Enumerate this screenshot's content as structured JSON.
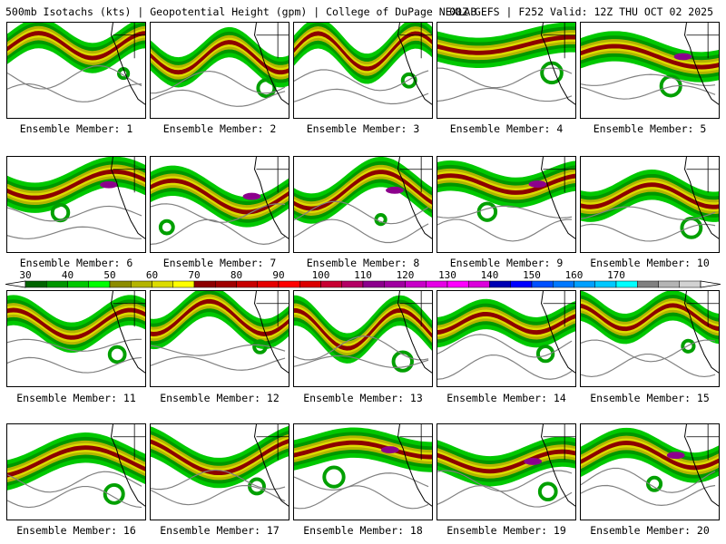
{
  "header": {
    "left": "500mb Isotachs (kts) | Geopotential Height (gpm) | College of DuPage NEXLAB",
    "right": "00Z GEFS | F252 Valid: 12Z THU OCT 02 2025"
  },
  "panels": [
    {
      "member": 1,
      "caption": "Ensemble Member: 1"
    },
    {
      "member": 2,
      "caption": "Ensemble Member: 2"
    },
    {
      "member": 3,
      "caption": "Ensemble Member: 3"
    },
    {
      "member": 4,
      "caption": "Ensemble Member: 4"
    },
    {
      "member": 5,
      "caption": "Ensemble Member: 5"
    },
    {
      "member": 6,
      "caption": "Ensemble Member: 6"
    },
    {
      "member": 7,
      "caption": "Ensemble Member: 7"
    },
    {
      "member": 8,
      "caption": "Ensemble Member: 8"
    },
    {
      "member": 9,
      "caption": "Ensemble Member: 9"
    },
    {
      "member": 10,
      "caption": "Ensemble Member: 10"
    },
    {
      "member": 11,
      "caption": "Ensemble Member: 11"
    },
    {
      "member": 12,
      "caption": "Ensemble Member: 12"
    },
    {
      "member": 13,
      "caption": "Ensemble Member: 13"
    },
    {
      "member": 14,
      "caption": "Ensemble Member: 14"
    },
    {
      "member": 15,
      "caption": "Ensemble Member: 15"
    },
    {
      "member": 16,
      "caption": "Ensemble Member: 16"
    },
    {
      "member": 17,
      "caption": "Ensemble Member: 17"
    },
    {
      "member": 18,
      "caption": "Ensemble Member: 18"
    },
    {
      "member": 19,
      "caption": "Ensemble Member: 19"
    },
    {
      "member": 20,
      "caption": "Ensemble Member: 20"
    }
  ],
  "colorbar": {
    "labels": [
      "30",
      "40",
      "50",
      "60",
      "70",
      "80",
      "90",
      "100",
      "110",
      "120",
      "130",
      "140",
      "150",
      "160",
      "170"
    ],
    "colors": [
      "#006400",
      "#009600",
      "#00c800",
      "#00ff00",
      "#8c8c00",
      "#b4b400",
      "#dcdc00",
      "#ffff00",
      "#8c0000",
      "#a00000",
      "#c80000",
      "#e60000",
      "#ff0000",
      "#dc0000",
      "#c80032",
      "#b40064",
      "#8c008c",
      "#a000a0",
      "#c800c8",
      "#e600e6",
      "#ff00ff",
      "#dc00dc",
      "#0000b4",
      "#0000ff",
      "#0050ff",
      "#0078ff",
      "#00a0ff",
      "#00c8ff",
      "#00ffff",
      "#808080",
      "#b4b4b4",
      "#d2d2d2"
    ]
  }
}
